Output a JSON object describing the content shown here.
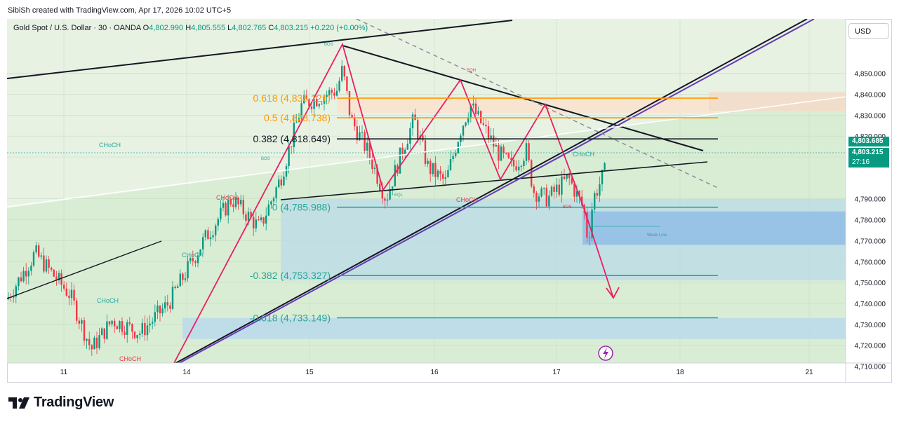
{
  "credit": "SibiSh created with TradingView.com, Apr 17, 2026 10:02 UTC+5",
  "legend": {
    "symbol": "Gold Spot / U.S. Dollar · 30 · OANDA",
    "o_label": "O",
    "o_value": "4,802.990",
    "h_label": "H",
    "h_value": "4,805.555",
    "l_label": "L",
    "l_value": "4,802.765",
    "c_label": "C",
    "c_value": "4,803.215",
    "change": "+0.220 (+0.00%)"
  },
  "currency_button": "USD",
  "price_tags": {
    "a": "4,803.685",
    "b": "4,803.215",
    "countdown": "27:16"
  },
  "brand": "TradingView",
  "colors": {
    "up": "#089981",
    "down": "#f23645",
    "accent": "#e91e63",
    "fib_orange": "#ff9800",
    "fib_teal": "#26a69a",
    "channel_purple": "#673ab7"
  },
  "chart_data": {
    "type": "candlestick",
    "y_ticks": [
      "4,850.000",
      "4,840.000",
      "4,830.000",
      "4,820.000",
      "4,810.000",
      "4,790.000",
      "4,780.000",
      "4,770.000",
      "4,760.000",
      "4,750.000",
      "4,740.000",
      "4,730.000",
      "4,720.000",
      "4,710.000"
    ],
    "y_tick_values": [
      4850,
      4840,
      4830,
      4820,
      4810,
      4790,
      4780,
      4770,
      4760,
      4750,
      4740,
      4730,
      4720,
      4710
    ],
    "x_ticks": [
      "11",
      "14",
      "15",
      "16",
      "17",
      "18",
      "21"
    ],
    "x_tick_days": [
      11,
      14,
      15,
      16,
      17,
      18,
      21
    ],
    "ylim": [
      4706,
      4868
    ],
    "fib_levels": [
      {
        "label": "0.618 (4,838.121)",
        "value": 4838.121,
        "color": "#ff9800"
      },
      {
        "label": "0.5 (4,828.738)",
        "value": 4828.738,
        "color": "#ff9800"
      },
      {
        "label": "0.382 (4,818.649)",
        "value": 4818.649,
        "color": "#131722"
      },
      {
        "label": "0 (4,785.988)",
        "value": 4785.988,
        "color": "#26a69a"
      },
      {
        "label": "-0.382 (4,753.327)",
        "value": 4753.327,
        "color": "#26a69a"
      },
      {
        "label": "-0.618 (4,733.149)",
        "value": 4733.149,
        "color": "#26a69a"
      }
    ],
    "annotations": [
      "CHoCH",
      "BOS",
      "EQH",
      "EQL",
      "Weak Low"
    ],
    "last_price": 4803.215
  }
}
